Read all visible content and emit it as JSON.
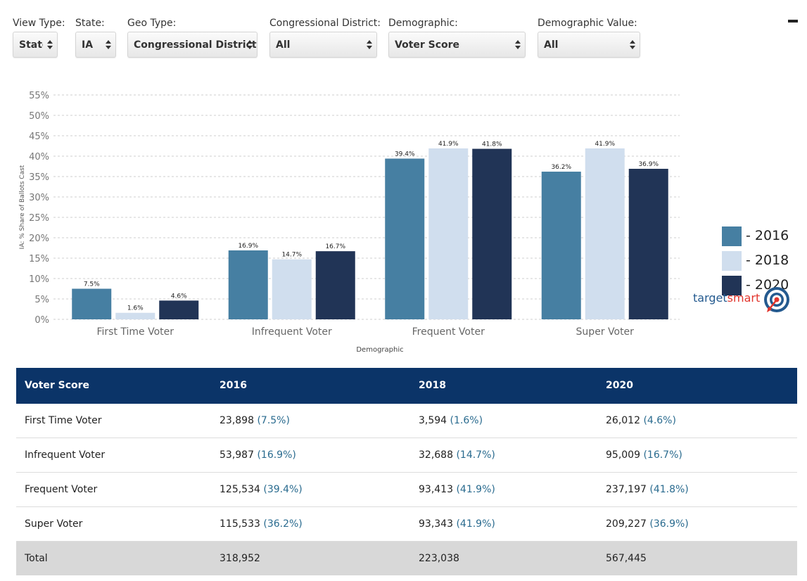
{
  "filters": [
    {
      "label": "View Type:",
      "value": "State"
    },
    {
      "label": "State:",
      "value": "IA"
    },
    {
      "label": "Geo Type:",
      "value": "Congressional District"
    },
    {
      "label": "Congressional District:",
      "value": "All"
    },
    {
      "label": "Demographic:",
      "value": "Voter Score"
    },
    {
      "label": "Demographic Value:",
      "value": "All"
    }
  ],
  "colors": {
    "2016": "#467fa2",
    "2018": "#d0deee",
    "2020": "#213456",
    "table_header": "#0b3468",
    "pct_text": "#2a6b8f"
  },
  "legend": [
    {
      "label": "- 2016",
      "color": "#467fa2"
    },
    {
      "label": "- 2018",
      "color": "#d0deee"
    },
    {
      "label": "- 2020",
      "color": "#213456"
    }
  ],
  "logo": {
    "text_a": "target",
    "text_b": "smart"
  },
  "chart_data": {
    "type": "bar",
    "ylabel": "IA: % Share of Ballots Cast",
    "xlabel": "Demographic",
    "categories": [
      "First Time Voter",
      "Infrequent Voter",
      "Frequent Voter",
      "Super Voter"
    ],
    "series": [
      {
        "name": "2016",
        "values": [
          7.5,
          16.9,
          39.4,
          36.2
        ],
        "color": "#467fa2"
      },
      {
        "name": "2018",
        "values": [
          1.6,
          14.7,
          41.9,
          41.9
        ],
        "color": "#d0deee"
      },
      {
        "name": "2020",
        "values": [
          4.6,
          16.7,
          41.8,
          36.9
        ],
        "color": "#213456"
      }
    ],
    "ylim": [
      0,
      55
    ],
    "yticks": [
      "0%",
      "5%",
      "10%",
      "15%",
      "20%",
      "25%",
      "30%",
      "35%",
      "40%",
      "45%",
      "50%",
      "55%"
    ],
    "data_labels": [
      [
        "7.5%",
        "16.9%",
        "39.4%",
        "36.2%"
      ],
      [
        "1.6%",
        "14.7%",
        "41.9%",
        "41.9%"
      ],
      [
        "4.6%",
        "16.7%",
        "41.8%",
        "36.9%"
      ]
    ],
    "grid": true,
    "legend_position": "right"
  },
  "table": {
    "headers": [
      "Voter Score",
      "2016",
      "2018",
      "2020"
    ],
    "rows": [
      {
        "label": "First Time Voter",
        "cells": [
          {
            "n": "23,898",
            "p": "(7.5%)"
          },
          {
            "n": "3,594",
            "p": "(1.6%)"
          },
          {
            "n": "26,012",
            "p": "(4.6%)"
          }
        ]
      },
      {
        "label": "Infrequent Voter",
        "cells": [
          {
            "n": "53,987",
            "p": "(16.9%)"
          },
          {
            "n": "32,688",
            "p": "(14.7%)"
          },
          {
            "n": "95,009",
            "p": "(16.7%)"
          }
        ]
      },
      {
        "label": "Frequent Voter",
        "cells": [
          {
            "n": "125,534",
            "p": "(39.4%)"
          },
          {
            "n": "93,413",
            "p": "(41.9%)"
          },
          {
            "n": "237,197",
            "p": "(41.8%)"
          }
        ]
      },
      {
        "label": "Super Voter",
        "cells": [
          {
            "n": "115,533",
            "p": "(36.2%)"
          },
          {
            "n": "93,343",
            "p": "(41.9%)"
          },
          {
            "n": "209,227",
            "p": "(36.9%)"
          }
        ]
      }
    ],
    "total": {
      "label": "Total",
      "cells": [
        "318,952",
        "223,038",
        "567,445"
      ]
    }
  }
}
